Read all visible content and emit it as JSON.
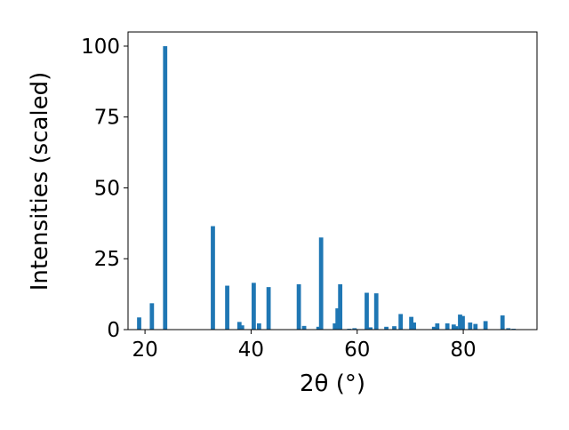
{
  "chart_data": {
    "type": "bar",
    "xlabel": "2θ (°)",
    "ylabel": "Intensities (scaled)",
    "x": [
      18.9,
      21.3,
      23.8,
      32.8,
      35.5,
      37.8,
      38.3,
      40.5,
      41.5,
      43.3,
      49.0,
      50.0,
      52.7,
      53.2,
      55.8,
      56.3,
      56.8,
      58.5,
      59.5,
      61.8,
      62.5,
      63.6,
      65.5,
      67.0,
      68.2,
      70.2,
      70.7,
      74.5,
      75.1,
      77.0,
      78.2,
      78.6,
      79.4,
      79.9,
      81.3,
      82.3,
      84.2,
      87.4,
      88.5,
      89.5
    ],
    "values": [
      4.3,
      9.3,
      100,
      36.5,
      15.5,
      2.7,
      1.5,
      16.5,
      2.2,
      15,
      16,
      1.3,
      1,
      32.5,
      2.2,
      7.5,
      16,
      0.3,
      0.5,
      13,
      0.8,
      12.8,
      1,
      1.2,
      5.5,
      4.5,
      2.5,
      1,
      2.2,
      2.2,
      1.8,
      1.2,
      5.3,
      4.8,
      2.5,
      2,
      3,
      5,
      0.5,
      0.3
    ],
    "color": "#1f77b4",
    "xlim": [
      16.8,
      93.9
    ],
    "xticks": [
      20,
      40,
      60,
      80
    ],
    "ylim": [
      0,
      105
    ],
    "yticks": [
      0,
      25,
      50,
      75,
      100
    ]
  }
}
